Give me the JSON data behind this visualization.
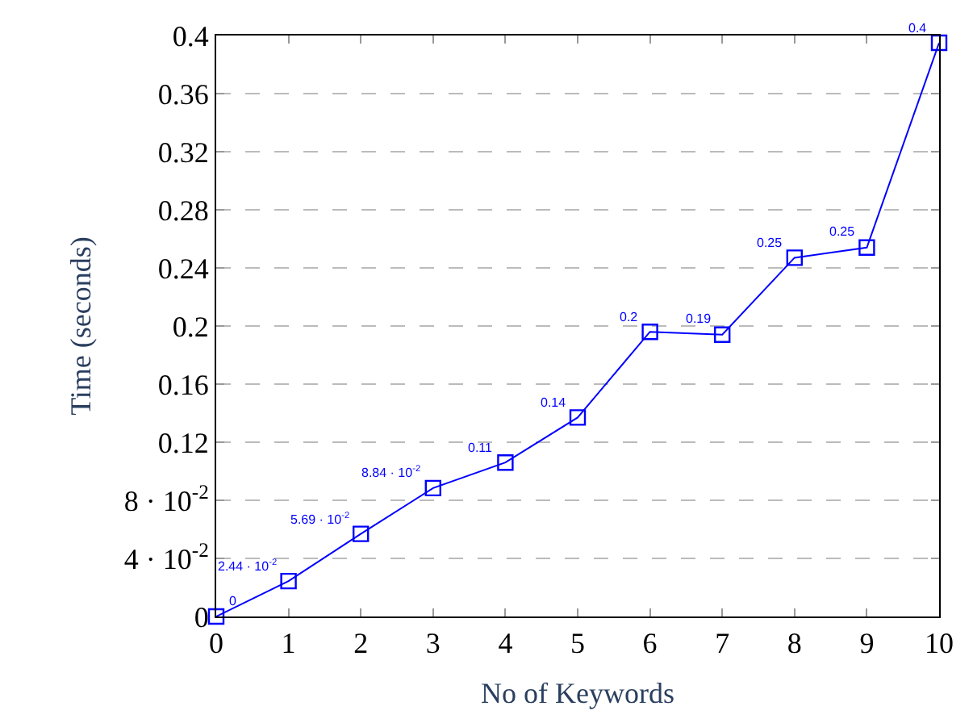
{
  "chart_data": {
    "type": "line",
    "xlabel": "No of Keywords",
    "ylabel": "Time (seconds)",
    "x": [
      0,
      1,
      2,
      3,
      4,
      5,
      6,
      7,
      8,
      9,
      10
    ],
    "series": [
      {
        "color": "#0000ff",
        "values": [
          0,
          0.0244,
          0.0569,
          0.0884,
          0.106,
          0.137,
          0.196,
          0.194,
          0.247,
          0.254,
          0.395
        ],
        "value_labels": [
          "0",
          "2.44 · 10$^{-2}$",
          "5.69 · 10$^{-2}$",
          "8.84 · 10$^{-2}$",
          "0.11",
          "0.14",
          "0.2",
          "0.19",
          "0.25",
          "0.25",
          "0.4"
        ]
      }
    ],
    "xlim": [
      0,
      10
    ],
    "xticks": [
      0,
      1,
      2,
      3,
      4,
      5,
      6,
      7,
      8,
      9,
      10
    ],
    "ylim": [
      0,
      0.4
    ],
    "yticks": [
      0,
      {
        "value": 0.04,
        "label": "4 · 10$^{-2}$"
      },
      {
        "value": 0.08,
        "label": "8 · 10$^{-2}$"
      },
      0.12,
      0.16,
      0.2,
      0.24,
      0.28,
      0.32,
      0.36,
      0.4
    ],
    "grid": "y",
    "marker": "square",
    "line_style": "solid"
  }
}
